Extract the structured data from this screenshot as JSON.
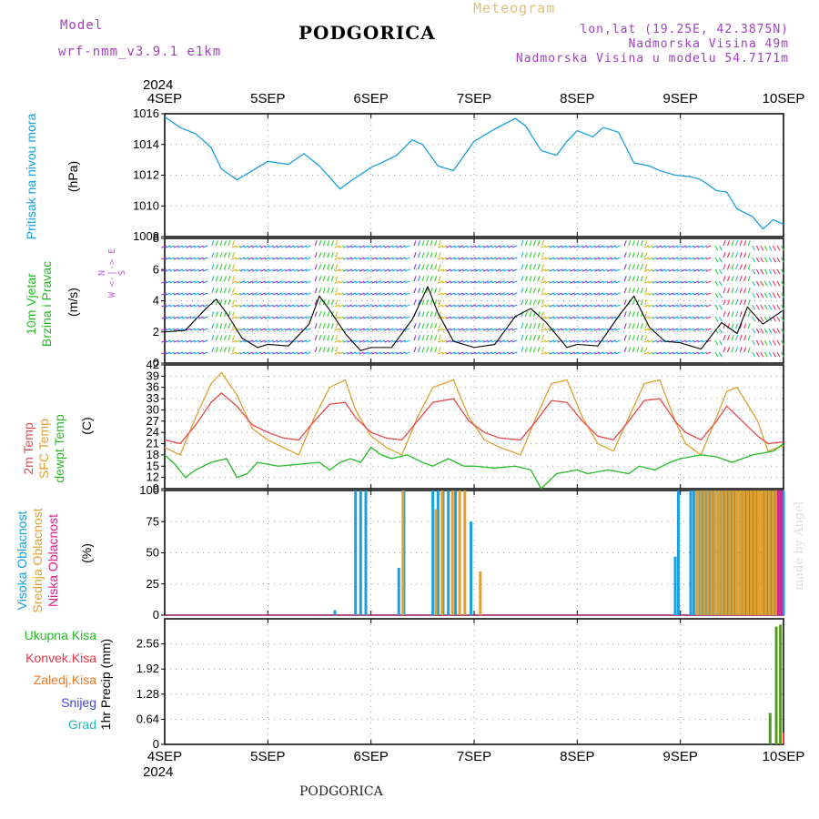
{
  "header": {
    "model_label": "Model",
    "model_value": "wrf-nmm_v3.9.1 e1km",
    "title": "PODGORICA",
    "subtitle": "Meteogram",
    "coords": "lon,lat (19.25E, 42.3875N)",
    "elevation": "Nadmorska Visina 49m",
    "model_elevation": "Nadmorska Visina u modelu 54.7171m"
  },
  "footer": {
    "location": "PODGORICA",
    "credit": "made by Angel"
  },
  "colors": {
    "pressure": "#1a9fe0",
    "wind_label": "#22bb22",
    "temp2m": "#e8484a",
    "sfc": "#e0a030",
    "dewpt": "#22bb22",
    "high_cloud": "#1a9fe0",
    "mid_cloud": "#e0a030",
    "low_cloud": "#e0208a",
    "total_precip": "#22bb22",
    "conv": "#ee3344",
    "freezing": "#ee7722",
    "snow": "#4444dd",
    "hail": "#22bbbb"
  },
  "axis_labels": {
    "pressure": [
      "Pritisak na nivou mora",
      "(hPa)"
    ],
    "wind": [
      "10m Vjetar",
      "Brzina i Pravac",
      "(m/s)"
    ],
    "wind_compass": [
      "N",
      "W <-|-> E",
      "S"
    ],
    "temp": [
      "2m Temp",
      "SFC Temp",
      "dewpt Temp",
      "(C)"
    ],
    "cloud": [
      "Visoka Oblacnost",
      "Srednja Oblacnost",
      "Niska Oblacnost",
      "(%)"
    ],
    "precip_unit": "1hr Precip (mm)",
    "precip_legend": [
      "Ukupna Kisa",
      "Konvek.Kisa",
      "Zaledj.Kisa",
      "Snijeg",
      "Grad"
    ]
  },
  "chart_data": [
    {
      "type": "line",
      "panel": "pressure",
      "x_range": [
        "4SEP",
        "10SEP"
      ],
      "x_units": "days since 4SEP 00UTC",
      "ylim": [
        1008,
        1016
      ],
      "yticks": [
        1008,
        1010,
        1012,
        1014,
        1016
      ],
      "series": [
        {
          "name": "Pritisak na nivou mora",
          "x": [
            0,
            0.15,
            0.3,
            0.45,
            0.55,
            0.7,
            0.9,
            1.0,
            1.2,
            1.35,
            1.5,
            1.7,
            1.8,
            2.0,
            2.1,
            2.25,
            2.4,
            2.5,
            2.65,
            2.8,
            3.0,
            3.2,
            3.4,
            3.5,
            3.65,
            3.8,
            3.9,
            4.0,
            4.15,
            4.25,
            4.4,
            4.55,
            4.7,
            4.8,
            4.95,
            5.1,
            5.2,
            5.35,
            5.45,
            5.55,
            5.7,
            5.8,
            5.9,
            6.0
          ],
          "y": [
            1015.8,
            1015.1,
            1014.7,
            1013.8,
            1012.4,
            1011.7,
            1012.5,
            1012.9,
            1012.7,
            1013.4,
            1012.6,
            1011.1,
            1011.6,
            1012.5,
            1012.8,
            1013.3,
            1014.3,
            1014.0,
            1012.6,
            1012.3,
            1014.2,
            1015.0,
            1015.7,
            1015.2,
            1013.6,
            1013.3,
            1014.2,
            1014.9,
            1014.5,
            1015.1,
            1014.8,
            1012.8,
            1012.6,
            1012.3,
            1012.0,
            1011.9,
            1011.7,
            1011.0,
            1010.9,
            1009.8,
            1009.3,
            1008.5,
            1009.1,
            1008.8
          ]
        }
      ]
    },
    {
      "type": "line",
      "panel": "wind",
      "ylim": [
        0,
        8
      ],
      "yticks": [
        0,
        2,
        4,
        6,
        8
      ],
      "series": [
        {
          "name": "10m Vjetar Brzina",
          "x": [
            0,
            0.2,
            0.4,
            0.5,
            0.6,
            0.75,
            0.9,
            1.0,
            1.2,
            1.4,
            1.5,
            1.6,
            1.75,
            1.9,
            2.0,
            2.2,
            2.4,
            2.55,
            2.65,
            2.8,
            3.0,
            3.2,
            3.4,
            3.55,
            3.7,
            3.9,
            4.0,
            4.2,
            4.4,
            4.55,
            4.7,
            4.85,
            5.0,
            5.2,
            5.4,
            5.55,
            5.65,
            5.8,
            6.0
          ],
          "y": [
            2.0,
            2.1,
            3.5,
            4.1,
            3.2,
            1.6,
            1.0,
            1.2,
            1.1,
            2.5,
            4.3,
            3.4,
            1.9,
            0.8,
            1.0,
            1.0,
            2.8,
            4.9,
            3.2,
            1.4,
            1.0,
            1.2,
            3.0,
            3.5,
            2.6,
            1.0,
            1.2,
            1.1,
            3.0,
            4.3,
            2.3,
            1.4,
            1.3,
            0.9,
            2.6,
            1.9,
            3.6,
            2.5,
            3.4
          ]
        }
      ]
    },
    {
      "type": "line",
      "panel": "temperature",
      "ylim": [
        9,
        42
      ],
      "yticks": [
        9,
        12,
        15,
        18,
        21,
        24,
        27,
        30,
        33,
        36,
        39,
        42
      ],
      "series": [
        {
          "name": "2m Temp",
          "x": [
            0,
            0.15,
            0.3,
            0.45,
            0.55,
            0.7,
            0.85,
            1.0,
            1.15,
            1.3,
            1.45,
            1.6,
            1.75,
            1.85,
            2.0,
            2.15,
            2.3,
            2.45,
            2.6,
            2.8,
            2.95,
            3.1,
            3.25,
            3.45,
            3.6,
            3.75,
            3.9,
            4.05,
            4.2,
            4.35,
            4.5,
            4.65,
            4.8,
            4.95,
            5.05,
            5.2,
            5.35,
            5.45,
            5.6,
            5.75,
            5.85,
            6.0
          ],
          "y": [
            22,
            21,
            26,
            32,
            34.5,
            31,
            26,
            24,
            22.5,
            22,
            27,
            31.5,
            32,
            28,
            24,
            22.5,
            22,
            27,
            32,
            33,
            27,
            24,
            22.5,
            22,
            27,
            32.5,
            32,
            27,
            23,
            22,
            27,
            32.5,
            33,
            27,
            24,
            22,
            27,
            31,
            27,
            23,
            21,
            21.5
          ]
        },
        {
          "name": "SFC Temp",
          "x": [
            0,
            0.15,
            0.3,
            0.45,
            0.55,
            0.7,
            0.85,
            1.0,
            1.15,
            1.3,
            1.45,
            1.6,
            1.75,
            1.85,
            2.0,
            2.15,
            2.3,
            2.45,
            2.6,
            2.8,
            2.95,
            3.1,
            3.25,
            3.45,
            3.6,
            3.75,
            3.9,
            4.05,
            4.2,
            4.35,
            4.5,
            4.65,
            4.8,
            4.95,
            5.05,
            5.2,
            5.35,
            5.45,
            5.55,
            5.75,
            5.85,
            6.0
          ],
          "y": [
            20,
            18,
            28,
            37,
            40,
            34,
            25,
            22,
            20,
            18,
            28,
            36,
            38,
            30,
            23,
            20,
            18,
            28,
            36,
            38,
            28,
            22,
            20,
            18,
            28,
            37,
            38,
            28,
            21,
            19,
            28,
            37,
            38,
            27,
            21,
            18,
            28,
            35,
            36,
            27,
            19,
            20.5
          ]
        },
        {
          "name": "dewpt Temp",
          "x": [
            0,
            0.1,
            0.2,
            0.3,
            0.45,
            0.6,
            0.7,
            0.8,
            0.9,
            1.1,
            1.3,
            1.5,
            1.6,
            1.7,
            1.8,
            1.9,
            2.0,
            2.1,
            2.2,
            2.35,
            2.5,
            2.6,
            2.75,
            2.9,
            3.0,
            3.2,
            3.4,
            3.55,
            3.65,
            3.8,
            4.0,
            4.1,
            4.3,
            4.5,
            4.6,
            4.75,
            4.9,
            5.0,
            5.2,
            5.35,
            5.5,
            5.7,
            5.9,
            6.0
          ],
          "y": [
            18,
            15.5,
            12,
            14,
            16,
            17,
            12,
            13,
            16,
            15,
            15.5,
            16,
            14,
            16,
            17,
            16,
            20,
            18,
            17,
            18,
            16,
            15,
            17,
            15,
            15,
            14.5,
            15,
            14,
            9,
            13,
            14,
            13,
            14,
            13,
            15,
            14,
            16,
            17,
            18,
            17.5,
            16,
            18,
            19,
            21
          ]
        }
      ]
    },
    {
      "type": "bar",
      "panel": "cloud",
      "ylim": [
        0,
        100
      ],
      "yticks": [
        0,
        25,
        50,
        75,
        100
      ],
      "series": [
        {
          "name": "Visoka Oblacnost",
          "x": [
            1.65,
            1.85,
            1.9,
            1.95,
            2.27,
            2.32,
            2.6,
            2.65,
            2.7,
            2.75,
            2.82,
            2.97,
            5.87,
            5.9,
            5.95,
            6.0
          ],
          "y": [
            4,
            100,
            100,
            100,
            38,
            100,
            100,
            100,
            100,
            100,
            100,
            75,
            100,
            100,
            100,
            100
          ]
        },
        {
          "name": "Srednja Oblacnost",
          "x": [
            2.3,
            2.62,
            2.68,
            2.78,
            2.85,
            2.9,
            3.05,
            5.3,
            5.4,
            5.5,
            5.6,
            5.7,
            5.8,
            5.85
          ],
          "y": [
            100,
            85,
            100,
            100,
            100,
            100,
            35,
            100,
            100,
            100,
            100,
            100,
            100,
            100
          ]
        },
        {
          "name": "Niska Oblacnost",
          "x": [
            5.95,
            5.98
          ],
          "y": [
            100,
            100
          ]
        }
      ],
      "extra_high_block": {
        "from": 5.1,
        "to": 6.0,
        "value": 100
      },
      "extra_mid_block": {
        "from": 5.15,
        "to": 5.95,
        "value": 100
      },
      "extra_high_9sep": {
        "x": [
          4.95,
          4.98
        ],
        "y": [
          47,
          100
        ]
      }
    },
    {
      "type": "bar",
      "panel": "precip",
      "ylim": [
        0,
        3.2
      ],
      "yticks": [
        0,
        0.64,
        1.28,
        1.92,
        2.56
      ],
      "series": [
        {
          "name": "Ukupna Kisa",
          "x": [
            5.87,
            5.93,
            5.97
          ],
          "y": [
            0.8,
            3.0,
            3.05
          ]
        },
        {
          "name": "Konvek.Kisa",
          "x": [
            6.0
          ],
          "y": [
            0.3
          ]
        }
      ]
    }
  ],
  "x_axis": {
    "year": "2024",
    "ticks": [
      "4SEP",
      "5SEP",
      "6SEP",
      "7SEP",
      "8SEP",
      "9SEP",
      "10SEP"
    ]
  }
}
